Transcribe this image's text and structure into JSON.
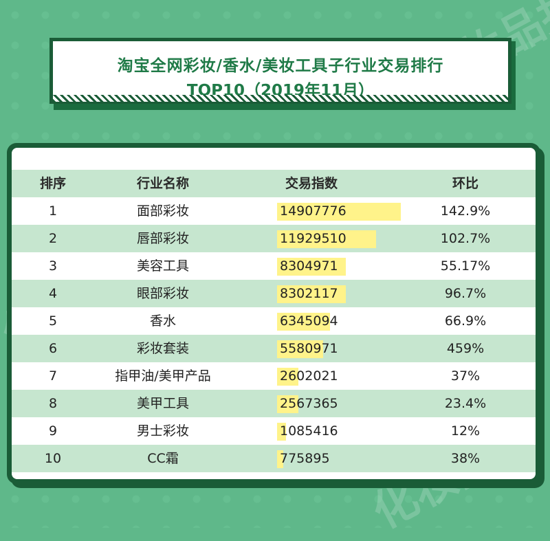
{
  "title": {
    "line1": "淘宝全网彩妆/香水/美妆工具子行业交易排行",
    "line2": "TOP10（2019年11月）"
  },
  "watermark": "化妆品报",
  "colors": {
    "background": "#5fb88a",
    "frame": "#1a5c37",
    "title_text": "#1f7a47",
    "row_alt": "#c6e6cf",
    "bar": "#fff38a"
  },
  "chart_data": {
    "type": "table",
    "columns": [
      "排序",
      "行业名称",
      "交易指数",
      "环比"
    ],
    "rows": [
      {
        "rank": "1",
        "name": "面部彩妆",
        "value": 14907776,
        "value_text": "14907776",
        "mom": "142.9%"
      },
      {
        "rank": "2",
        "name": "唇部彩妆",
        "value": 11929510,
        "value_text": "11929510",
        "mom": "102.7%"
      },
      {
        "rank": "3",
        "name": "美容工具",
        "value": 8304971,
        "value_text": "8304971",
        "mom": "55.17%"
      },
      {
        "rank": "4",
        "name": "眼部彩妆",
        "value": 8302117,
        "value_text": "8302117",
        "mom": "96.7%"
      },
      {
        "rank": "5",
        "name": "香水",
        "value": 6345094,
        "value_text": "6345094",
        "mom": "66.9%"
      },
      {
        "rank": "6",
        "name": "彩妆套装",
        "value": 5580971,
        "value_text": "5580971",
        "mom": "459%"
      },
      {
        "rank": "7",
        "name": "指甲油/美甲产品",
        "value": 2602021,
        "value_text": "2602021",
        "mom": "37%"
      },
      {
        "rank": "8",
        "name": "美甲工具",
        "value": 2567365,
        "value_text": "2567365",
        "mom": "23.4%"
      },
      {
        "rank": "9",
        "name": "男士彩妆",
        "value": 1085416,
        "value_text": "1085416",
        "mom": "12%"
      },
      {
        "rank": "10",
        "name": "CC霜",
        "value": 775895,
        "value_text": "775895",
        "mom": "38%"
      }
    ]
  }
}
